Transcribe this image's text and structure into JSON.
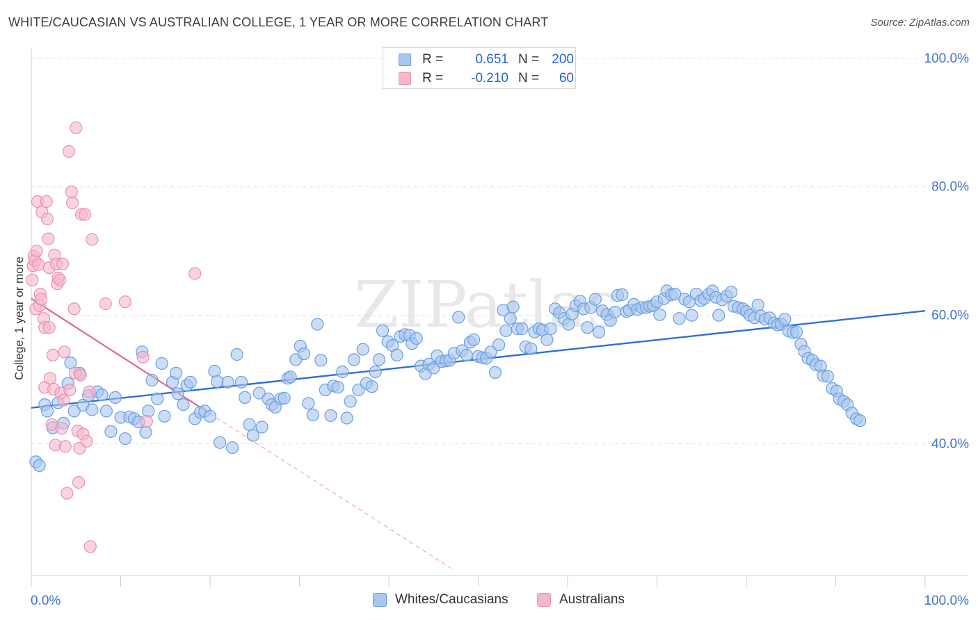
{
  "header": {
    "title": "WHITE/CAUCASIAN VS AUSTRALIAN COLLEGE, 1 YEAR OR MORE CORRELATION CHART",
    "source": "Source: ZipAtlas.com"
  },
  "watermark": "ZIPatlas",
  "legend_top": {
    "rows": [
      {
        "r_label": "R =",
        "r_value": "0.651",
        "n_label": "N =",
        "n_value": "200"
      },
      {
        "r_label": "R =",
        "r_value": "-0.210",
        "n_label": "N =",
        "n_value": "60"
      }
    ]
  },
  "legend_bottom": {
    "items": [
      {
        "label": "Whites/Caucasians"
      },
      {
        "label": "Australians"
      }
    ]
  },
  "colors": {
    "blue_fill": "#a9c6ef",
    "blue_stroke": "#6a9ee0",
    "blue_line": "#2f6fd6",
    "pink_fill": "#f5b8cb",
    "pink_stroke": "#ea8fae",
    "pink_line": "#e2668e",
    "tick_text": "#3f74c9",
    "grid": "#e2e2e2"
  },
  "chart_data": {
    "type": "scatter",
    "title": "WHITE/CAUCASIAN VS AUSTRALIAN COLLEGE, 1 YEAR OR MORE CORRELATION CHART",
    "xlabel": "",
    "ylabel": "College, 1 year or more",
    "xlim": [
      0,
      100
    ],
    "ylim": [
      19.5,
      101.5
    ],
    "x_tick_labels": [
      {
        "value": 0,
        "label": "0.0%"
      },
      {
        "value": 100,
        "label": "100.0%"
      }
    ],
    "y_tick_labels": [
      {
        "value": 40,
        "label": "40.0%"
      },
      {
        "value": 60,
        "label": "60.0%"
      },
      {
        "value": 80,
        "label": "80.0%"
      },
      {
        "value": 100,
        "label": "100.0%"
      }
    ],
    "grid": "horizontal dashed",
    "legend_position": "top-center",
    "series": [
      {
        "name": "Whites/Caucasians",
        "r": 0.651,
        "n": 200,
        "trend": {
          "x": [
            0,
            100
          ],
          "y": [
            45.6,
            60.7
          ]
        },
        "points": [
          [
            0.5,
            37.2
          ],
          [
            0.9,
            36.6
          ],
          [
            1.5,
            46.1
          ],
          [
            1.8,
            45.1
          ],
          [
            2.4,
            42.5
          ],
          [
            3.0,
            46.4
          ],
          [
            3.6,
            43.2
          ],
          [
            4.1,
            49.4
          ],
          [
            4.4,
            52.6
          ],
          [
            4.8,
            45.1
          ],
          [
            5.4,
            51.0
          ],
          [
            5.8,
            46.0
          ],
          [
            6.4,
            47.5
          ],
          [
            6.8,
            45.3
          ],
          [
            7.4,
            48.1
          ],
          [
            7.9,
            47.6
          ],
          [
            8.4,
            45.1
          ],
          [
            8.9,
            41.9
          ],
          [
            9.4,
            47.2
          ],
          [
            10.0,
            44.1
          ],
          [
            10.5,
            40.8
          ],
          [
            11.0,
            44.2
          ],
          [
            11.5,
            43.9
          ],
          [
            12.0,
            43.4
          ],
          [
            12.4,
            54.3
          ],
          [
            12.8,
            41.8
          ],
          [
            13.1,
            45.1
          ],
          [
            13.5,
            49.9
          ],
          [
            14.1,
            47.0
          ],
          [
            14.6,
            52.5
          ],
          [
            14.9,
            44.3
          ],
          [
            15.8,
            49.6
          ],
          [
            16.2,
            51.0
          ],
          [
            16.4,
            47.8
          ],
          [
            17.0,
            46.1
          ],
          [
            17.4,
            49.1
          ],
          [
            17.8,
            49.6
          ],
          [
            18.3,
            43.9
          ],
          [
            18.9,
            44.9
          ],
          [
            19.4,
            45.1
          ],
          [
            20.0,
            44.3
          ],
          [
            20.5,
            51.3
          ],
          [
            20.8,
            49.7
          ],
          [
            21.1,
            40.2
          ],
          [
            22.0,
            49.6
          ],
          [
            22.5,
            39.4
          ],
          [
            23.0,
            53.9
          ],
          [
            23.5,
            49.6
          ],
          [
            23.9,
            47.2
          ],
          [
            24.4,
            43.0
          ],
          [
            24.8,
            41.3
          ],
          [
            25.5,
            47.9
          ],
          [
            25.8,
            42.6
          ],
          [
            26.5,
            47.0
          ],
          [
            26.9,
            46.1
          ],
          [
            27.3,
            45.7
          ],
          [
            27.9,
            47.0
          ],
          [
            28.3,
            47.1
          ],
          [
            28.7,
            50.2
          ],
          [
            29.0,
            50.4
          ],
          [
            29.6,
            53.1
          ],
          [
            30.1,
            55.2
          ],
          [
            30.5,
            54.0
          ],
          [
            31.0,
            46.3
          ],
          [
            31.5,
            44.5
          ],
          [
            32.0,
            58.6
          ],
          [
            32.4,
            53.0
          ],
          [
            32.9,
            48.4
          ],
          [
            33.5,
            44.4
          ],
          [
            33.8,
            49.0
          ],
          [
            34.3,
            48.8
          ],
          [
            34.8,
            51.2
          ],
          [
            35.3,
            44.0
          ],
          [
            35.7,
            46.6
          ],
          [
            36.1,
            53.1
          ],
          [
            36.6,
            48.4
          ],
          [
            37.1,
            54.7
          ],
          [
            37.5,
            49.4
          ],
          [
            38.1,
            48.9
          ],
          [
            38.5,
            51.2
          ],
          [
            38.9,
            53.1
          ],
          [
            39.3,
            57.6
          ],
          [
            39.9,
            55.9
          ],
          [
            40.4,
            55.3
          ],
          [
            40.9,
            53.8
          ],
          [
            41.3,
            56.7
          ],
          [
            41.8,
            57.0
          ],
          [
            42.3,
            56.9
          ],
          [
            42.6,
            55.6
          ],
          [
            43.1,
            56.4
          ],
          [
            43.6,
            52.1
          ],
          [
            44.1,
            50.9
          ],
          [
            44.5,
            52.4
          ],
          [
            45.0,
            51.8
          ],
          [
            45.4,
            53.7
          ],
          [
            45.9,
            52.8
          ],
          [
            46.4,
            52.9
          ],
          [
            46.8,
            53.0
          ],
          [
            47.3,
            54.1
          ],
          [
            47.8,
            59.7
          ],
          [
            48.2,
            54.5
          ],
          [
            48.7,
            53.8
          ],
          [
            49.1,
            55.8
          ],
          [
            49.5,
            56.2
          ],
          [
            50.0,
            53.6
          ],
          [
            50.5,
            53.4
          ],
          [
            50.9,
            53.3
          ],
          [
            51.4,
            54.3
          ],
          [
            51.9,
            51.1
          ],
          [
            52.3,
            55.4
          ],
          [
            52.8,
            60.8
          ],
          [
            53.1,
            57.6
          ],
          [
            53.6,
            59.5
          ],
          [
            53.9,
            61.3
          ],
          [
            54.4,
            57.9
          ],
          [
            54.9,
            57.9
          ],
          [
            55.3,
            55.1
          ],
          [
            55.9,
            54.8
          ],
          [
            56.3,
            57.4
          ],
          [
            56.8,
            57.9
          ],
          [
            57.2,
            57.7
          ],
          [
            57.7,
            56.2
          ],
          [
            58.1,
            57.9
          ],
          [
            58.6,
            61.0
          ],
          [
            59.1,
            60.4
          ],
          [
            59.6,
            59.5
          ],
          [
            60.1,
            58.6
          ],
          [
            60.5,
            60.2
          ],
          [
            60.9,
            61.5
          ],
          [
            61.4,
            62.2
          ],
          [
            61.8,
            61.0
          ],
          [
            62.2,
            58.1
          ],
          [
            62.6,
            61.2
          ],
          [
            63.1,
            62.5
          ],
          [
            63.5,
            57.4
          ],
          [
            63.9,
            60.7
          ],
          [
            64.4,
            60.1
          ],
          [
            64.8,
            59.2
          ],
          [
            65.3,
            60.5
          ],
          [
            65.6,
            63.1
          ],
          [
            66.1,
            63.2
          ],
          [
            66.6,
            60.6
          ],
          [
            66.9,
            60.8
          ],
          [
            67.4,
            61.7
          ],
          [
            67.8,
            60.9
          ],
          [
            68.3,
            61.2
          ],
          [
            68.8,
            61.2
          ],
          [
            69.2,
            61.4
          ],
          [
            69.6,
            61.5
          ],
          [
            70.0,
            62.1
          ],
          [
            70.3,
            60.1
          ],
          [
            70.8,
            62.6
          ],
          [
            71.1,
            63.8
          ],
          [
            71.6,
            63.2
          ],
          [
            72.0,
            63.3
          ],
          [
            72.5,
            59.5
          ],
          [
            73.1,
            62.5
          ],
          [
            73.6,
            62.1
          ],
          [
            73.9,
            60.0
          ],
          [
            74.4,
            63.3
          ],
          [
            74.9,
            62.3
          ],
          [
            75.3,
            62.6
          ],
          [
            75.8,
            63.3
          ],
          [
            76.2,
            63.8
          ],
          [
            76.6,
            62.8
          ],
          [
            76.9,
            60.0
          ],
          [
            77.3,
            62.4
          ],
          [
            77.8,
            63.0
          ],
          [
            78.3,
            63.6
          ],
          [
            78.6,
            61.4
          ],
          [
            79.1,
            61.2
          ],
          [
            79.6,
            61.0
          ],
          [
            80.0,
            60.6
          ],
          [
            80.4,
            60.0
          ],
          [
            80.9,
            59.6
          ],
          [
            81.3,
            61.6
          ],
          [
            81.6,
            59.9
          ],
          [
            82.1,
            59.4
          ],
          [
            82.6,
            59.6
          ],
          [
            83.1,
            58.8
          ],
          [
            83.5,
            58.5
          ],
          [
            83.9,
            58.6
          ],
          [
            84.3,
            59.4
          ],
          [
            84.7,
            57.6
          ],
          [
            85.2,
            57.3
          ],
          [
            85.6,
            57.4
          ],
          [
            86.1,
            55.5
          ],
          [
            86.5,
            54.4
          ],
          [
            86.9,
            53.3
          ],
          [
            87.4,
            53.0
          ],
          [
            87.8,
            52.3
          ],
          [
            88.3,
            52.1
          ],
          [
            88.6,
            50.6
          ],
          [
            89.1,
            50.5
          ],
          [
            89.6,
            48.6
          ],
          [
            90.1,
            48.2
          ],
          [
            90.4,
            47.0
          ],
          [
            90.9,
            46.6
          ],
          [
            91.3,
            46.1
          ],
          [
            91.8,
            44.8
          ],
          [
            92.3,
            43.9
          ],
          [
            92.7,
            43.6
          ]
        ]
      },
      {
        "name": "Australians",
        "r": -0.21,
        "n": 60,
        "trend": {
          "x": [
            0,
            20
          ],
          "y": [
            62.6,
            44.7
          ]
        },
        "trend_dashed_extension": {
          "x": [
            20,
            47
          ],
          "y": [
            44.7,
            20.6
          ]
        },
        "points": [
          [
            0.1,
            65.5
          ],
          [
            0.2,
            67.7
          ],
          [
            0.3,
            69.2
          ],
          [
            0.4,
            68.5
          ],
          [
            0.5,
            61.0
          ],
          [
            0.6,
            70.0
          ],
          [
            0.7,
            77.7
          ],
          [
            0.8,
            67.9
          ],
          [
            0.9,
            61.5
          ],
          [
            1.0,
            63.3
          ],
          [
            1.1,
            62.5
          ],
          [
            1.2,
            76.1
          ],
          [
            1.4,
            59.5
          ],
          [
            1.5,
            58.1
          ],
          [
            1.5,
            48.8
          ],
          [
            1.7,
            77.7
          ],
          [
            1.8,
            75.0
          ],
          [
            1.9,
            71.9
          ],
          [
            2.0,
            67.4
          ],
          [
            2.0,
            58.1
          ],
          [
            2.1,
            50.2
          ],
          [
            2.3,
            43.0
          ],
          [
            2.4,
            53.8
          ],
          [
            2.5,
            48.5
          ],
          [
            2.6,
            69.4
          ],
          [
            2.7,
            39.8
          ],
          [
            2.8,
            68.0
          ],
          [
            2.9,
            64.9
          ],
          [
            3.0,
            65.8
          ],
          [
            3.2,
            65.5
          ],
          [
            3.3,
            47.9
          ],
          [
            3.4,
            42.4
          ],
          [
            3.5,
            68.0
          ],
          [
            3.6,
            46.8
          ],
          [
            3.7,
            54.3
          ],
          [
            3.8,
            39.6
          ],
          [
            4.0,
            32.3
          ],
          [
            4.2,
            85.5
          ],
          [
            4.3,
            48.4
          ],
          [
            4.5,
            79.2
          ],
          [
            4.6,
            77.5
          ],
          [
            4.8,
            61.0
          ],
          [
            4.9,
            51.0
          ],
          [
            5.0,
            89.2
          ],
          [
            5.2,
            42.0
          ],
          [
            5.4,
            39.3
          ],
          [
            5.5,
            50.7
          ],
          [
            5.6,
            75.7
          ],
          [
            5.8,
            41.5
          ],
          [
            6.0,
            75.7
          ],
          [
            6.2,
            40.4
          ],
          [
            6.5,
            48.1
          ],
          [
            6.6,
            24.0
          ],
          [
            6.8,
            71.8
          ],
          [
            8.3,
            61.8
          ],
          [
            10.5,
            62.1
          ],
          [
            12.5,
            53.5
          ],
          [
            12.9,
            43.5
          ],
          [
            18.3,
            66.5
          ],
          [
            5.3,
            34.0
          ]
        ]
      }
    ]
  }
}
